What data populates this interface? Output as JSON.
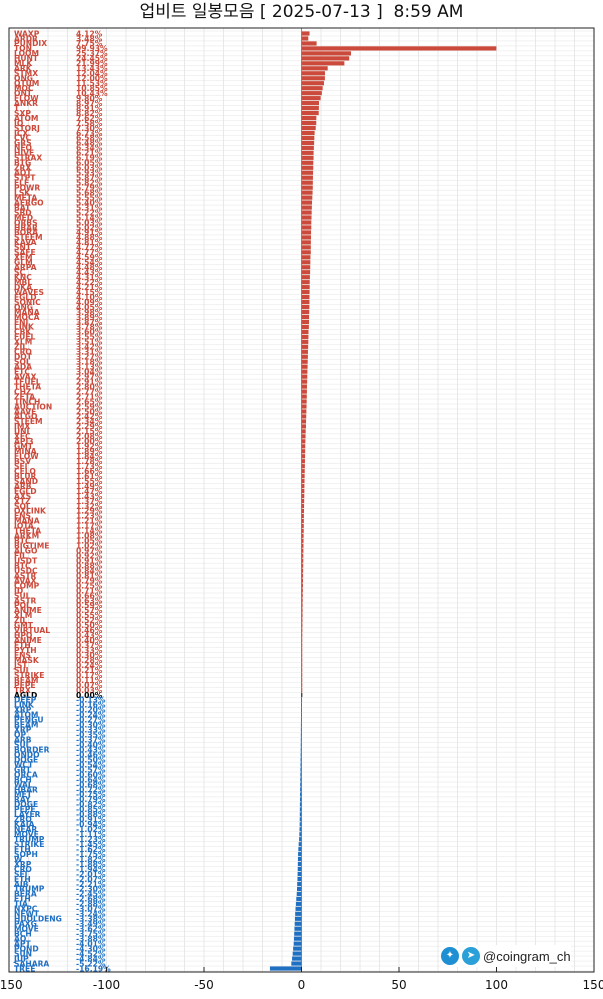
{
  "title": "업비트 일봉모음 [ 2025-07-13 ]  8:59 AM",
  "watermark": {
    "handle": "@coingram_ch",
    "icons": [
      "twitter-icon",
      "telegram-icon"
    ]
  },
  "colors": {
    "positive": "#cc4a3b",
    "negative": "#1f6fc2",
    "zero": "#000000",
    "grid": "#d9d9d9"
  },
  "chart_data": {
    "type": "bar",
    "orientation": "horizontal",
    "description_note": "daily candles per coin: bar = change%",
    "xlim": [
      -150,
      150
    ],
    "xticks": [
      -150,
      -100,
      -50,
      0,
      50,
      100,
      150
    ],
    "grid": true,
    "series": [
      {
        "values": [
          [
            "WAXP",
            "4.12%",
            4.12
          ],
          [
            "ARDR",
            "3.48%",
            3.48
          ],
          [
            "PUNDIX",
            "7.75%",
            7.75
          ],
          [
            "TON",
            "99.93%",
            99.93
          ],
          [
            "LOOM",
            "25.37%",
            25.37
          ],
          [
            "HUNT",
            "24.45%",
            24.45
          ],
          [
            "MLK",
            "21.99%",
            21.99
          ],
          [
            "ARK",
            "13.43%",
            13.43
          ],
          [
            "STMX",
            "12.04%",
            12.04
          ],
          [
            "ONG",
            "12.00%",
            12.0
          ],
          [
            "QTUM",
            "11.53%",
            11.53
          ],
          [
            "MOC",
            "10.85%",
            10.85
          ],
          [
            "ONT",
            "10.43%",
            10.43
          ],
          [
            "FLOW",
            "9.80%",
            9.8
          ],
          [
            "ANKR",
            "8.97%",
            8.97
          ],
          [
            "T",
            "8.91%",
            8.91
          ],
          [
            "SXP",
            "8.82%",
            8.82
          ],
          [
            "ATOM",
            "7.62%",
            7.62
          ],
          [
            "IQ",
            "7.58%",
            7.58
          ],
          [
            "STORJ",
            "7.30%",
            7.3
          ],
          [
            "ICX",
            "6.73%",
            6.73
          ],
          [
            "CVC",
            "6.58%",
            6.58
          ],
          [
            "GRS",
            "6.48%",
            6.48
          ],
          [
            "NEO",
            "6.34%",
            6.34
          ],
          [
            "HIVE",
            "6.21%",
            6.21
          ],
          [
            "STRAX",
            "6.19%",
            6.19
          ],
          [
            "BTG",
            "6.05%",
            6.05
          ],
          [
            "ZRX",
            "6.03%",
            6.03
          ],
          [
            "AQT",
            "5.93%",
            5.93
          ],
          [
            "STPT",
            "5.87%",
            5.87
          ],
          [
            "ELF",
            "5.82%",
            5.82
          ],
          [
            "POWR",
            "5.79%",
            5.79
          ],
          [
            "LSK",
            "5.68%",
            5.68
          ],
          [
            "META",
            "5.55%",
            5.55
          ],
          [
            "AERGO",
            "5.40%",
            5.4
          ],
          [
            "BAT",
            "5.31%",
            5.31
          ],
          [
            "SBD",
            "5.22%",
            5.22
          ],
          [
            "MED",
            "5.14%",
            5.14
          ],
          [
            "ORBS",
            "5.03%",
            5.03
          ],
          [
            "HBAR",
            "5.02%",
            5.02
          ],
          [
            "BORA",
            "4.91%",
            4.91
          ],
          [
            "STEEM",
            "4.88%",
            4.88
          ],
          [
            "KAVA",
            "4.81%",
            4.81
          ],
          [
            "SNT",
            "4.77%",
            4.77
          ],
          [
            "SAFE",
            "4.77%",
            4.77
          ],
          [
            "XEM",
            "4.59%",
            4.59
          ],
          [
            "GLM",
            "4.54%",
            4.54
          ],
          [
            "ARPA",
            "4.48%",
            4.48
          ],
          [
            "SC",
            "4.43%",
            4.43
          ],
          [
            "KNC",
            "4.31%",
            4.31
          ],
          [
            "MBL",
            "4.22%",
            4.22
          ],
          [
            "DKA",
            "4.21%",
            4.21
          ],
          [
            "WAVES",
            "4.15%",
            4.15
          ],
          [
            "EGLD",
            "4.10%",
            4.1
          ],
          [
            "SONIC",
            "4.09%",
            4.09
          ],
          [
            "ONG",
            "4.05%",
            4.05
          ],
          [
            "MANA",
            "3.98%",
            3.98
          ],
          [
            "MOCA",
            "3.89%",
            3.89
          ],
          [
            "ENJ",
            "3.87%",
            3.87
          ],
          [
            "LINK",
            "3.78%",
            3.78
          ],
          [
            "CBK",
            "3.60%",
            3.6
          ],
          [
            "FUEL",
            "3.55%",
            3.55
          ],
          [
            "XLM",
            "3.51%",
            3.51
          ],
          [
            "ZIL",
            "3.42%",
            3.42
          ],
          [
            "CRO",
            "3.31%",
            3.31
          ],
          [
            "DOT",
            "3.27%",
            3.27
          ],
          [
            "SOL",
            "3.18%",
            3.18
          ],
          [
            "ADA",
            "3.13%",
            3.13
          ],
          [
            "ETC",
            "3.04%",
            3.04
          ],
          [
            "AVAX",
            "2.97%",
            2.97
          ],
          [
            "TFUEL",
            "2.91%",
            2.91
          ],
          [
            "THETA",
            "2.80%",
            2.8
          ],
          [
            "CHZ",
            "2.77%",
            2.77
          ],
          [
            "ZETA",
            "2.71%",
            2.71
          ],
          [
            "1INCH",
            "2.65%",
            2.65
          ],
          [
            "AUCTION",
            "2.59%",
            2.59
          ],
          [
            "AAVE",
            "2.50%",
            2.5
          ],
          [
            "ALGO",
            "2.42%",
            2.42
          ],
          [
            "STEEM",
            "2.34%",
            2.34
          ],
          [
            "IMX",
            "2.29%",
            2.29
          ],
          [
            "UNI",
            "2.15%",
            2.15
          ],
          [
            "XEC",
            "2.08%",
            2.08
          ],
          [
            "API3",
            "2.00%",
            2.0
          ],
          [
            "GMT",
            "1.92%",
            1.92
          ],
          [
            "MINA",
            "1.89%",
            1.89
          ],
          [
            "FLOW",
            "1.84%",
            1.84
          ],
          [
            "BSV",
            "1.78%",
            1.78
          ],
          [
            "SEI",
            "1.73%",
            1.73
          ],
          [
            "CELO",
            "1.66%",
            1.66
          ],
          [
            "BLUR",
            "1.61%",
            1.61
          ],
          [
            "SAND",
            "1.55%",
            1.55
          ],
          [
            "ARB",
            "1.49%",
            1.49
          ],
          [
            "EGLD",
            "1.47%",
            1.47
          ],
          [
            "AXS",
            "1.43%",
            1.43
          ],
          [
            "XTZ",
            "1.37%",
            1.37
          ],
          [
            "SOL",
            "1.32%",
            1.32
          ],
          [
            "OXLINK",
            "1.29%",
            1.29
          ],
          [
            "ENS",
            "1.23%",
            1.23
          ],
          [
            "MANA",
            "1.21%",
            1.21
          ],
          [
            "IOTA",
            "1.17%",
            1.17
          ],
          [
            "THETA",
            "1.14%",
            1.14
          ],
          [
            "ARKM",
            "1.08%",
            1.08
          ],
          [
            "BTC",
            "1.05%",
            1.05
          ],
          [
            "BIGTIME",
            "1.02%",
            1.02
          ],
          [
            "ALGO",
            "0.97%",
            0.97
          ],
          [
            "FIL",
            "0.92%",
            0.92
          ],
          [
            "USDT",
            "0.91%",
            0.91
          ],
          [
            "BTC",
            "0.88%",
            0.88
          ],
          [
            "USDC",
            "0.84%",
            0.84
          ],
          [
            "ASTR",
            "0.81%",
            0.81
          ],
          [
            "AVAX",
            "0.79%",
            0.79
          ],
          [
            "COMP",
            "0.75%",
            0.75
          ],
          [
            "ID",
            "0.71%",
            0.71
          ],
          [
            "SUI",
            "0.66%",
            0.66
          ],
          [
            "ASTR",
            "0.63%",
            0.63
          ],
          [
            "POL",
            "0.59%",
            0.59
          ],
          [
            "ANIME",
            "0.57%",
            0.57
          ],
          [
            "XLM",
            "0.55%",
            0.55
          ],
          [
            "ZIL",
            "0.52%",
            0.52
          ],
          [
            "GMT",
            "0.50%",
            0.5
          ],
          [
            "VIRTUAL",
            "0.46%",
            0.46
          ],
          [
            "HPO",
            "0.43%",
            0.43
          ],
          [
            "ANIME",
            "0.40%",
            0.4
          ],
          [
            "ETH",
            "0.37%",
            0.37
          ],
          [
            "PYTH",
            "0.33%",
            0.33
          ],
          [
            "ENS",
            "0.30%",
            0.3
          ],
          [
            "MASK",
            "0.28%",
            0.28
          ],
          [
            "JST",
            "0.24%",
            0.24
          ],
          [
            "SUI",
            "0.21%",
            0.21
          ],
          [
            "STRIKE",
            "0.17%",
            0.17
          ],
          [
            "BEAM",
            "0.11%",
            0.11
          ],
          [
            "PEPE",
            "0.07%",
            0.07
          ],
          [
            "TRX",
            "0.03%",
            0.03
          ],
          [
            "AGLD",
            "0.00%",
            0.0
          ],
          [
            "DEEP",
            "-0.13%",
            -0.13
          ],
          [
            "LINK",
            "-0.16%",
            -0.16
          ],
          [
            "XRP",
            "-0.20%",
            -0.2
          ],
          [
            "ATOM",
            "-0.24%",
            -0.24
          ],
          [
            "PENGU",
            "-0.27%",
            -0.27
          ],
          [
            "BEAM",
            "-0.30%",
            -0.3
          ],
          [
            "XRP",
            "-0.33%",
            -0.33
          ],
          [
            "OP",
            "-0.35%",
            -0.35
          ],
          [
            "ARB",
            "-0.37%",
            -0.37
          ],
          [
            "SUI",
            "-0.40%",
            -0.4
          ],
          [
            "BORDER",
            "-0.43%",
            -0.43
          ],
          [
            "ONDO",
            "-0.46%",
            -0.46
          ],
          [
            "DOGE",
            "-0.50%",
            -0.5
          ],
          [
            "WCT",
            "-0.54%",
            -0.54
          ],
          [
            "GRT",
            "-0.57%",
            -0.57
          ],
          [
            "ORCA",
            "-0.60%",
            -0.6
          ],
          [
            "BCH",
            "-0.64%",
            -0.64
          ],
          [
            "WAL",
            "-0.68%",
            -0.68
          ],
          [
            "HBAR",
            "-0.72%",
            -0.72
          ],
          [
            "MET",
            "-0.75%",
            -0.75
          ],
          [
            "RAY",
            "-0.79%",
            -0.79
          ],
          [
            "DOGE",
            "-0.82%",
            -0.82
          ],
          [
            "PEPE",
            "-0.85%",
            -0.85
          ],
          [
            "LAYER",
            "-0.88%",
            -0.88
          ],
          [
            "ZRO",
            "-0.91%",
            -0.91
          ],
          [
            "KAIA",
            "-0.94%",
            -0.94
          ],
          [
            "NEAR",
            "-1.02%",
            -1.02
          ],
          [
            "MOVE",
            "-1.11%",
            -1.11
          ],
          [
            "TRUMP",
            "-1.23%",
            -1.23
          ],
          [
            "STRIKE",
            "-1.45%",
            -1.45
          ],
          [
            "ETH",
            "-1.62%",
            -1.62
          ],
          [
            "SOPH",
            "-1.75%",
            -1.75
          ],
          [
            "W",
            "-1.82%",
            -1.82
          ],
          [
            "XRP",
            "-1.88%",
            -1.88
          ],
          [
            "CRO",
            "-1.94%",
            -1.94
          ],
          [
            "SEI",
            "-2.01%",
            -2.01
          ],
          [
            "ETH",
            "-2.07%",
            -2.07
          ],
          [
            "AIB",
            "-2.21%",
            -2.21
          ],
          [
            "TRUMP",
            "-2.30%",
            -2.3
          ],
          [
            "BERA",
            "-2.45%",
            -2.45
          ],
          [
            "ETH",
            "-2.68%",
            -2.68
          ],
          [
            "TIA",
            "-2.88%",
            -2.88
          ],
          [
            "NXPC",
            "-3.07%",
            -3.07
          ],
          [
            "NEWT",
            "-3.24%",
            -3.24
          ],
          [
            "HUOLDENG",
            "-3.38%",
            -3.38
          ],
          [
            "PAXG",
            "-3.49%",
            -3.49
          ],
          [
            "MOVE",
            "-3.62%",
            -3.62
          ],
          [
            "BCH",
            "-3.75%",
            -3.75
          ],
          [
            "AQ",
            "-3.88%",
            -3.88
          ],
          [
            "APT",
            "-4.01%",
            -4.01
          ],
          [
            "POND",
            "-4.30%",
            -4.3
          ],
          [
            "SUN",
            "-4.52%",
            -4.52
          ],
          [
            "JUP",
            "-4.84%",
            -4.84
          ],
          [
            "SAHARA",
            "-5.22%",
            -5.22
          ],
          [
            "TREE",
            "-16.19%",
            -16.19
          ]
        ]
      }
    ]
  }
}
